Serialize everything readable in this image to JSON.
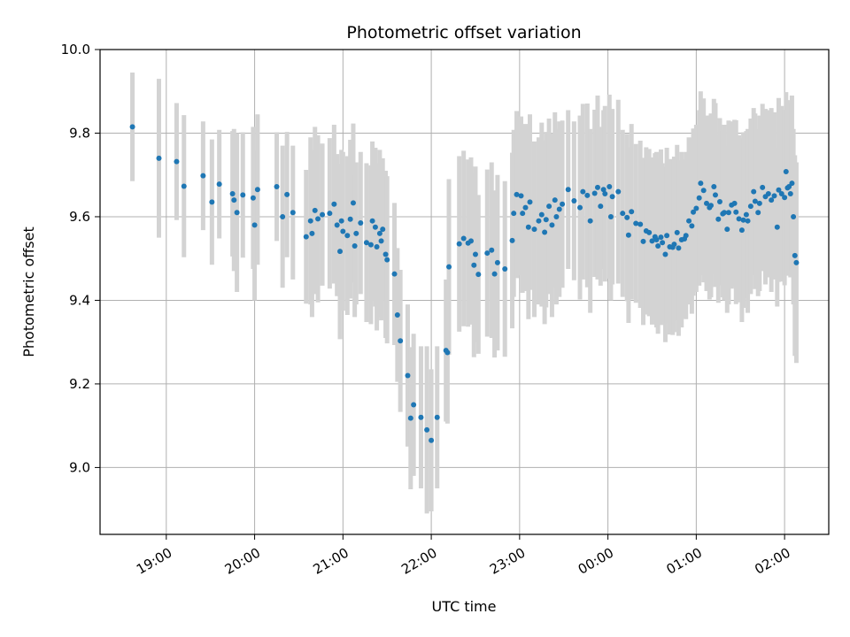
{
  "chart_data": {
    "type": "scatter",
    "title": "Photometric offset variation",
    "xlabel": "UTC time",
    "ylabel": "Photometric offset",
    "xlim": [
      "18:15",
      "02:30"
    ],
    "ylim": [
      8.84,
      10.0
    ],
    "grid": true,
    "x_ticks": [
      "19:00",
      "20:00",
      "21:00",
      "22:00",
      "23:00",
      "00:00",
      "01:00",
      "02:00"
    ],
    "y_ticks": [
      "9.0",
      "9.2",
      "9.4",
      "9.6",
      "9.8",
      "10.0"
    ],
    "colors": {
      "point": "#1f77b4",
      "errorbar": "#d3d3d3",
      "grid": "#b0b0b0"
    },
    "series": [
      {
        "x": [
          "18:37",
          "18:55",
          "19:07",
          "19:12",
          "19:25",
          "19:31",
          "19:36",
          "19:45",
          "19:46",
          "19:48",
          "19:52",
          "19:59",
          "20:00",
          "20:02",
          "20:15",
          "20:19",
          "20:22",
          "20:26",
          "20:35",
          "20:38",
          "20:39",
          "20:41",
          "20:43",
          "20:46",
          "20:51",
          "20:54",
          "20:56",
          "20:58",
          "20:59",
          "21:00",
          "21:03",
          "21:05",
          "21:07",
          "21:08",
          "21:09",
          "21:12",
          "21:16",
          "21:19",
          "21:20",
          "21:22",
          "21:23",
          "21:25",
          "21:26",
          "21:27",
          "21:29",
          "21:30",
          "21:35",
          "21:37",
          "21:39",
          "21:44",
          "21:46",
          "21:48",
          "21:53",
          "21:57",
          "22:00",
          "22:04",
          "22:10",
          "22:11",
          "22:12",
          "22:19",
          "22:22",
          "22:25",
          "22:27",
          "22:29",
          "22:30",
          "22:32",
          "22:38",
          "22:41",
          "22:43",
          "22:45",
          "22:50",
          "22:55",
          "22:56",
          "22:58",
          "23:01",
          "23:02",
          "23:04",
          "23:06",
          "23:07",
          "23:10",
          "23:13",
          "23:15",
          "23:17",
          "23:18",
          "23:20",
          "23:22",
          "23:24",
          "23:25",
          "23:27",
          "23:29",
          "23:33",
          "23:37",
          "23:41",
          "23:43",
          "23:46",
          "23:48",
          "23:51",
          "23:53",
          "23:55",
          "23:57",
          "23:58",
          "00:01",
          "00:02",
          "00:03",
          "00:07",
          "00:10",
          "00:13",
          "00:14",
          "00:16",
          "00:19",
          "00:22",
          "00:24",
          "00:26",
          "00:28",
          "00:30",
          "00:32",
          "00:33",
          "00:34",
          "00:36",
          "00:37",
          "00:39",
          "00:40",
          "00:42",
          "00:44",
          "00:45",
          "00:47",
          "00:48",
          "00:50",
          "00:52",
          "00:53",
          "00:55",
          "00:57",
          "00:58",
          "01:00",
          "01:02",
          "01:03",
          "01:05",
          "01:07",
          "01:09",
          "01:10",
          "01:12",
          "01:13",
          "01:15",
          "01:16",
          "01:18",
          "01:19",
          "01:21",
          "01:22",
          "01:24",
          "01:26",
          "01:27",
          "01:29",
          "01:31",
          "01:32",
          "01:34",
          "01:35",
          "01:37",
          "01:39",
          "01:40",
          "01:42",
          "01:43",
          "01:45",
          "01:47",
          "01:49",
          "01:51",
          "01:53",
          "01:55",
          "01:56",
          "01:58",
          "02:00",
          "02:01",
          "02:02",
          "02:03",
          "02:04",
          "02:05",
          "02:06",
          "02:07",
          "02:08"
        ],
        "y": [
          9.815,
          9.74,
          9.732,
          9.673,
          9.698,
          9.635,
          9.678,
          9.655,
          9.64,
          9.61,
          9.652,
          9.645,
          9.58,
          9.665,
          9.672,
          9.6,
          9.653,
          9.61,
          9.552,
          9.59,
          9.56,
          9.615,
          9.595,
          9.605,
          9.608,
          9.63,
          9.58,
          9.517,
          9.59,
          9.565,
          9.555,
          9.594,
          9.633,
          9.53,
          9.56,
          9.585,
          9.538,
          9.533,
          9.59,
          9.575,
          9.528,
          9.56,
          9.542,
          9.57,
          9.51,
          9.497,
          9.463,
          9.365,
          9.303,
          9.22,
          9.118,
          9.15,
          9.12,
          9.09,
          9.065,
          9.12,
          9.28,
          9.275,
          9.48,
          9.535,
          9.548,
          9.537,
          9.542,
          9.484,
          9.51,
          9.462,
          9.513,
          9.52,
          9.463,
          9.49,
          9.475,
          9.543,
          9.608,
          9.653,
          9.65,
          9.608,
          9.622,
          9.575,
          9.635,
          9.57,
          9.59,
          9.605,
          9.563,
          9.593,
          9.625,
          9.58,
          9.64,
          9.6,
          9.618,
          9.63,
          9.665,
          9.638,
          9.622,
          9.66,
          9.651,
          9.59,
          9.656,
          9.67,
          9.625,
          9.665,
          9.655,
          9.672,
          9.6,
          9.648,
          9.66,
          9.608,
          9.598,
          9.556,
          9.612,
          9.584,
          9.582,
          9.541,
          9.566,
          9.562,
          9.542,
          9.552,
          9.545,
          9.53,
          9.551,
          9.538,
          9.51,
          9.555,
          9.528,
          9.527,
          9.534,
          9.562,
          9.525,
          9.545,
          9.547,
          9.555,
          9.59,
          9.578,
          9.611,
          9.62,
          9.645,
          9.68,
          9.663,
          9.632,
          9.622,
          9.627,
          9.672,
          9.652,
          9.594,
          9.636,
          9.607,
          9.61,
          9.57,
          9.61,
          9.628,
          9.632,
          9.611,
          9.595,
          9.568,
          9.592,
          9.605,
          9.59,
          9.625,
          9.66,
          9.637,
          9.61,
          9.632,
          9.67,
          9.648,
          9.655,
          9.64,
          9.65,
          9.575,
          9.664,
          9.655,
          9.646,
          9.708,
          9.669,
          9.672,
          9.655,
          9.68,
          9.6,
          9.507,
          9.49
        ],
        "yerr": [
          0.13,
          0.19,
          0.14,
          0.17,
          0.13,
          0.15,
          0.13,
          0.15,
          0.17,
          0.19,
          0.15,
          0.17,
          0.18,
          0.18,
          0.13,
          0.17,
          0.15,
          0.16,
          0.16,
          0.2,
          0.2,
          0.2,
          0.2,
          0.17,
          0.18,
          0.19,
          0.17,
          0.21,
          0.17,
          0.19,
          0.19,
          0.19,
          0.19,
          0.17,
          0.17,
          0.17,
          0.19,
          0.19,
          0.19,
          0.19,
          0.2,
          0.2,
          0.19,
          0.17,
          0.2,
          0.2,
          0.17,
          0.16,
          0.17,
          0.17,
          0.17,
          0.17,
          0.17,
          0.2,
          0.17,
          0.17,
          0.17,
          0.17,
          0.21,
          0.21,
          0.21,
          0.2,
          0.2,
          0.22,
          0.21,
          0.19,
          0.2,
          0.21,
          0.2,
          0.21,
          0.21,
          0.21,
          0.2,
          0.2,
          0.19,
          0.19,
          0.2,
          0.22,
          0.21,
          0.21,
          0.2,
          0.22,
          0.22,
          0.21,
          0.21,
          0.22,
          0.21,
          0.21,
          0.21,
          0.2,
          0.19,
          0.19,
          0.22,
          0.21,
          0.22,
          0.22,
          0.2,
          0.22,
          0.19,
          0.19,
          0.21,
          0.22,
          0.2,
          0.21,
          0.22,
          0.2,
          0.2,
          0.21,
          0.21,
          0.19,
          0.2,
          0.2,
          0.2,
          0.2,
          0.2,
          0.2,
          0.21,
          0.21,
          0.21,
          0.19,
          0.21,
          0.21,
          0.21,
          0.21,
          0.21,
          0.21,
          0.21,
          0.21,
          0.19,
          0.2,
          0.2,
          0.21,
          0.2,
          0.2,
          0.21,
          0.22,
          0.22,
          0.21,
          0.22,
          0.22,
          0.21,
          0.22,
          0.2,
          0.2,
          0.2,
          0.21,
          0.2,
          0.22,
          0.2,
          0.2,
          0.22,
          0.2,
          0.22,
          0.21,
          0.2,
          0.22,
          0.21,
          0.2,
          0.21,
          0.2,
          0.21,
          0.2,
          0.21,
          0.2,
          0.22,
          0.2,
          0.19,
          0.22,
          0.21,
          0.21,
          0.19,
          0.21,
          0.2,
          0.2,
          0.21,
          0.21,
          0.24,
          0.24
        ]
      }
    ]
  }
}
